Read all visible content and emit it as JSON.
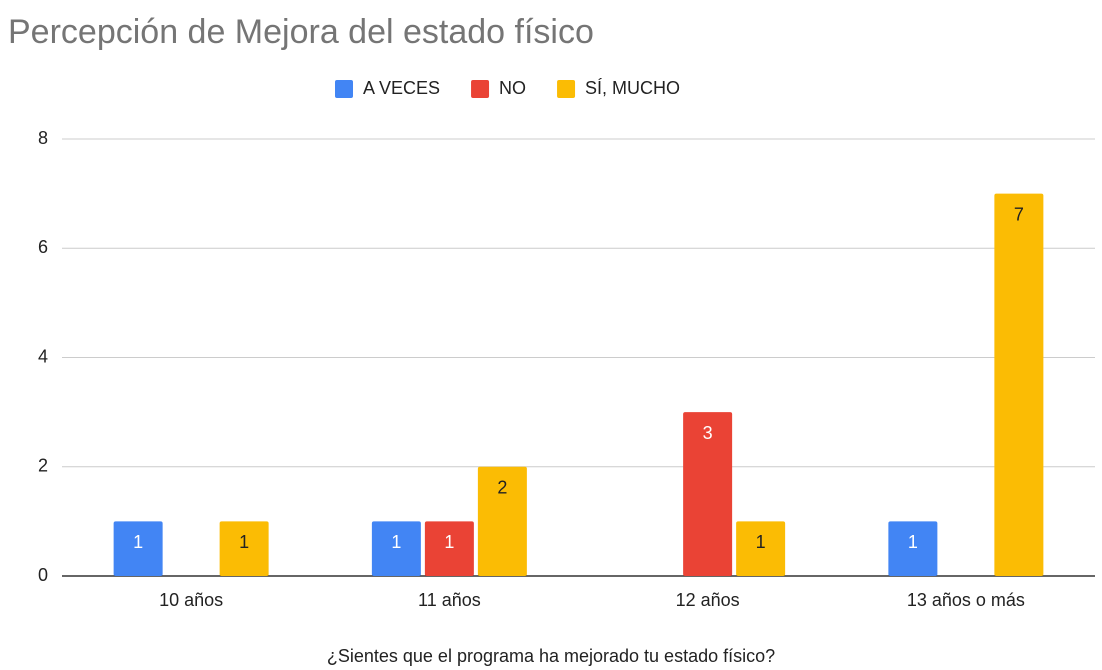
{
  "chart_data": {
    "type": "bar",
    "title": "Percepción de Mejora del estado físico",
    "x_label": "¿Sientes que el programa ha mejorado tu estado físico?",
    "categories": [
      "10 años",
      "11 años",
      "12 años",
      "13 años o más"
    ],
    "series": [
      {
        "name": "A VECES",
        "color": "#4285f4",
        "label_color": "#ffffff",
        "values": [
          1,
          1,
          null,
          1
        ]
      },
      {
        "name": "NO",
        "color": "#ea4335",
        "label_color": "#ffffff",
        "values": [
          null,
          1,
          3,
          null
        ]
      },
      {
        "name": "SÍ, MUCHO",
        "color": "#fbbc04",
        "label_color": "#222222",
        "values": [
          1,
          2,
          1,
          7
        ]
      }
    ],
    "ylim": [
      0,
      8
    ],
    "yticks": [
      0,
      2,
      4,
      6,
      8
    ],
    "grid": true,
    "legend": "top"
  }
}
